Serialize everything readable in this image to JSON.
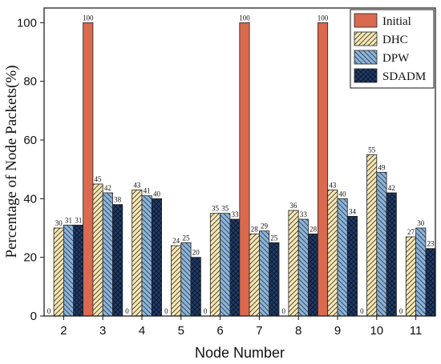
{
  "chart_data": {
    "type": "bar",
    "xlabel": "Node Number",
    "ylabel": "Percentage of Node Packets(%)",
    "ylim": [
      0,
      105
    ],
    "yticks": [
      0,
      20,
      40,
      60,
      80,
      100
    ],
    "categories": [
      "2",
      "3",
      "4",
      "5",
      "6",
      "7",
      "8",
      "9",
      "10",
      "11"
    ],
    "legend_position": "top-right",
    "series": [
      {
        "name": "Initial",
        "values": [
          0,
          100,
          0,
          0,
          0,
          100,
          0,
          100,
          0,
          0
        ],
        "labels": [
          "0",
          "100",
          "0",
          "0",
          "0",
          "100",
          "0",
          "100",
          "0",
          "0"
        ],
        "color": "#d9694f",
        "pattern": "solid"
      },
      {
        "name": "DHC",
        "values": [
          30,
          45,
          43,
          24,
          35,
          28,
          36,
          43,
          55,
          27
        ],
        "labels": [
          "30",
          "45",
          "43",
          "24",
          "35",
          "28",
          "36",
          "43",
          "55",
          "27"
        ],
        "color": "#f7e7b1",
        "pattern": "diagonal"
      },
      {
        "name": "DPW",
        "values": [
          31,
          42,
          41,
          25,
          35,
          29,
          33,
          40,
          49,
          30
        ],
        "labels": [
          "31",
          "42",
          "41",
          "25",
          "35",
          "29",
          "33",
          "40",
          "49",
          "30"
        ],
        "color": "#8db4d8",
        "pattern": "backdiagonal"
      },
      {
        "name": "SDADM",
        "values": [
          31,
          38,
          40,
          20,
          33,
          25,
          28,
          34,
          42,
          23
        ],
        "labels": [
          "31",
          "38",
          "40",
          "20",
          "33",
          "25",
          "28",
          "34",
          "42",
          "23"
        ],
        "color": "#1f3b69",
        "pattern": "crosshatch"
      }
    ]
  }
}
